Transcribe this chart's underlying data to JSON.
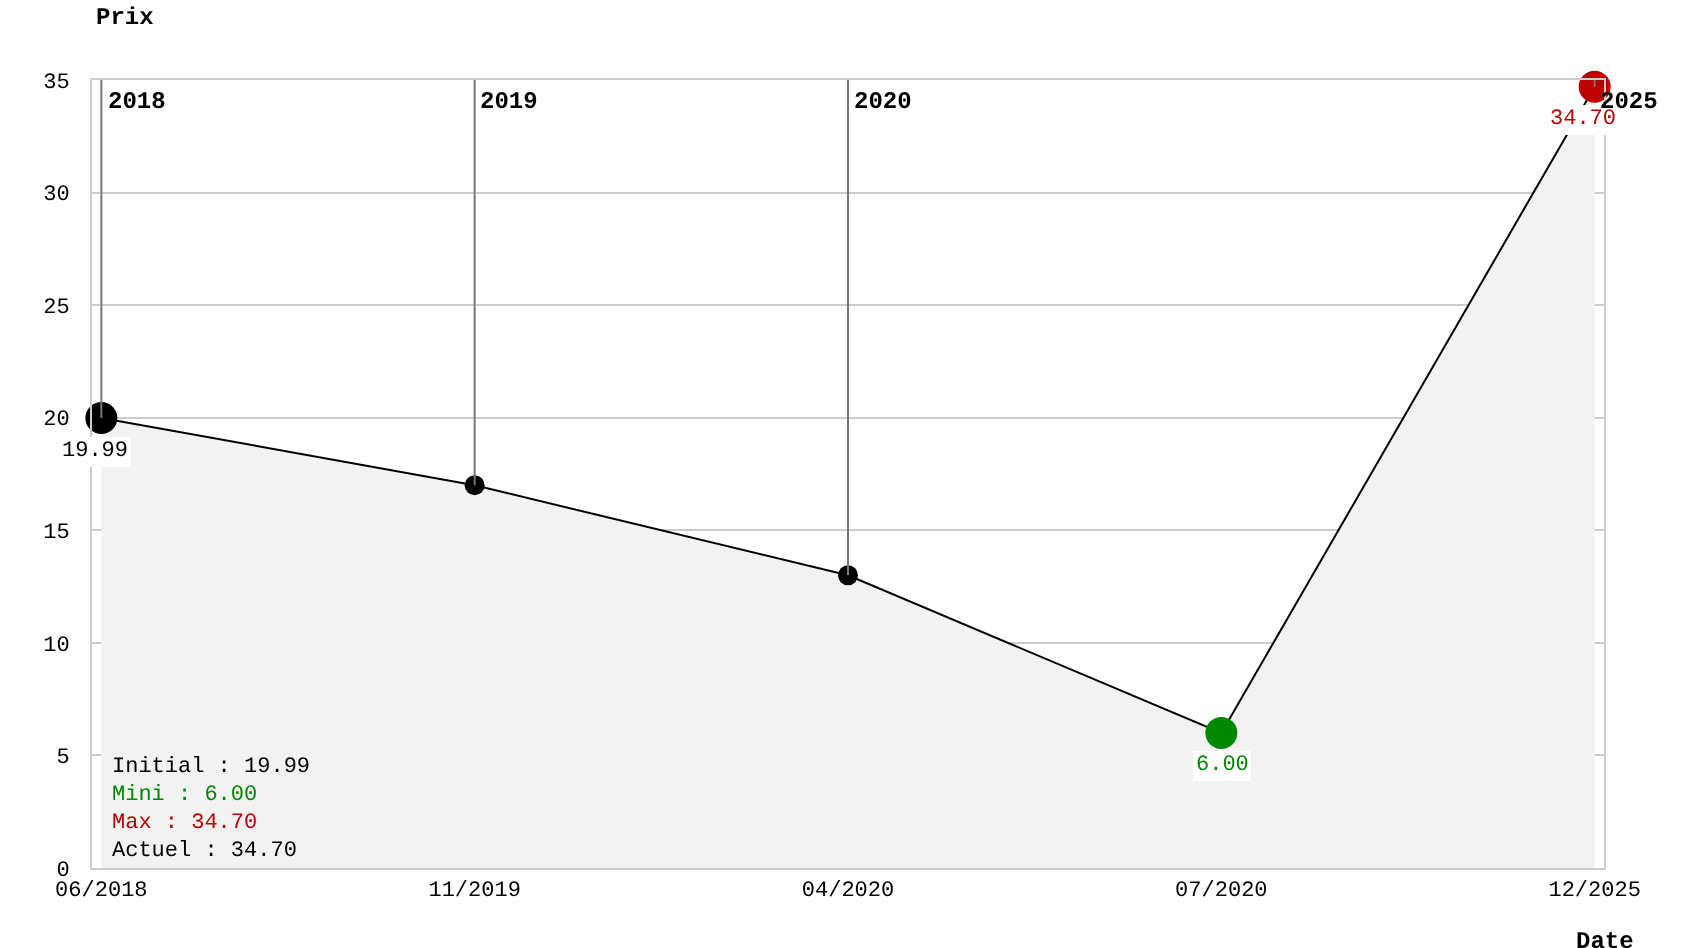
{
  "chart_data": {
    "type": "area",
    "xlabel": "Date",
    "ylabel": "Prix",
    "categories": [
      "06/2018",
      "11/2019",
      "04/2020",
      "07/2020",
      "12/2025"
    ],
    "values": [
      19.99,
      17,
      13,
      6.0,
      34.7
    ],
    "value_labels": [
      "19.99",
      null,
      null,
      "6.00",
      "34.70"
    ],
    "color": "#000000",
    "colors": [
      "#000000",
      "#000000",
      "#000000",
      "#008800",
      "#bb0000"
    ],
    "marker": "circle",
    "ylim": [
      0,
      35
    ],
    "yticks": [
      0,
      5,
      10,
      15,
      20,
      25,
      30,
      35
    ],
    "grid": "y",
    "legend": false,
    "ref_lines": [
      {
        "axis": "x",
        "value": "06/2018",
        "label": "2018"
      },
      {
        "axis": "x",
        "value": "11/2019",
        "label": "2019"
      },
      {
        "axis": "x",
        "value": "04/2020",
        "label": "2020"
      },
      {
        "axis": "x",
        "value": "12/2025",
        "label": "2025"
      }
    ],
    "annotations": [
      "Initial : 19.99",
      "Mini : 6.00",
      "Max : 34.70",
      "Actuel : 34.70"
    ]
  }
}
